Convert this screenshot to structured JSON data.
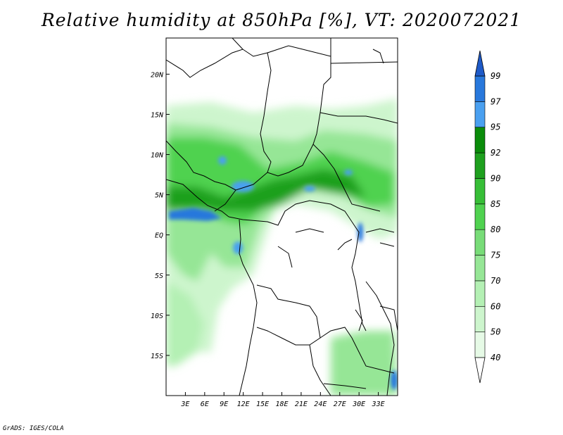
{
  "title": "Relative humidity at 850hPa [%], VT: 2020072021",
  "credit": "GrADS: IGES/COLA",
  "map": {
    "lon_range": [
      0,
      36
    ],
    "lat_range": [
      -20,
      24.5
    ],
    "x_ticks": [
      "3E",
      "6E",
      "9E",
      "12E",
      "15E",
      "18E",
      "21E",
      "24E",
      "27E",
      "30E",
      "33E"
    ],
    "x_tick_values": [
      3,
      6,
      9,
      12,
      15,
      18,
      21,
      24,
      27,
      30,
      33
    ],
    "y_ticks": [
      "20N",
      "15N",
      "10N",
      "5N",
      "EQ",
      "5S",
      "10S",
      "15S"
    ],
    "y_tick_values": [
      20,
      15,
      10,
      5,
      0,
      -5,
      -10,
      -15
    ]
  },
  "colorbar": {
    "levels": [
      "40",
      "50",
      "60",
      "70",
      "75",
      "80",
      "85",
      "90",
      "92",
      "95",
      "97",
      "99"
    ],
    "colors": [
      "#ffffff",
      "#e6fae6",
      "#cdf5cd",
      "#b4f0b4",
      "#96e696",
      "#78dc78",
      "#50d250",
      "#37be37",
      "#1ea01e",
      "#0a8c0a",
      "#4aa0f0",
      "#2878dc",
      "#1e5ac8"
    ]
  }
}
